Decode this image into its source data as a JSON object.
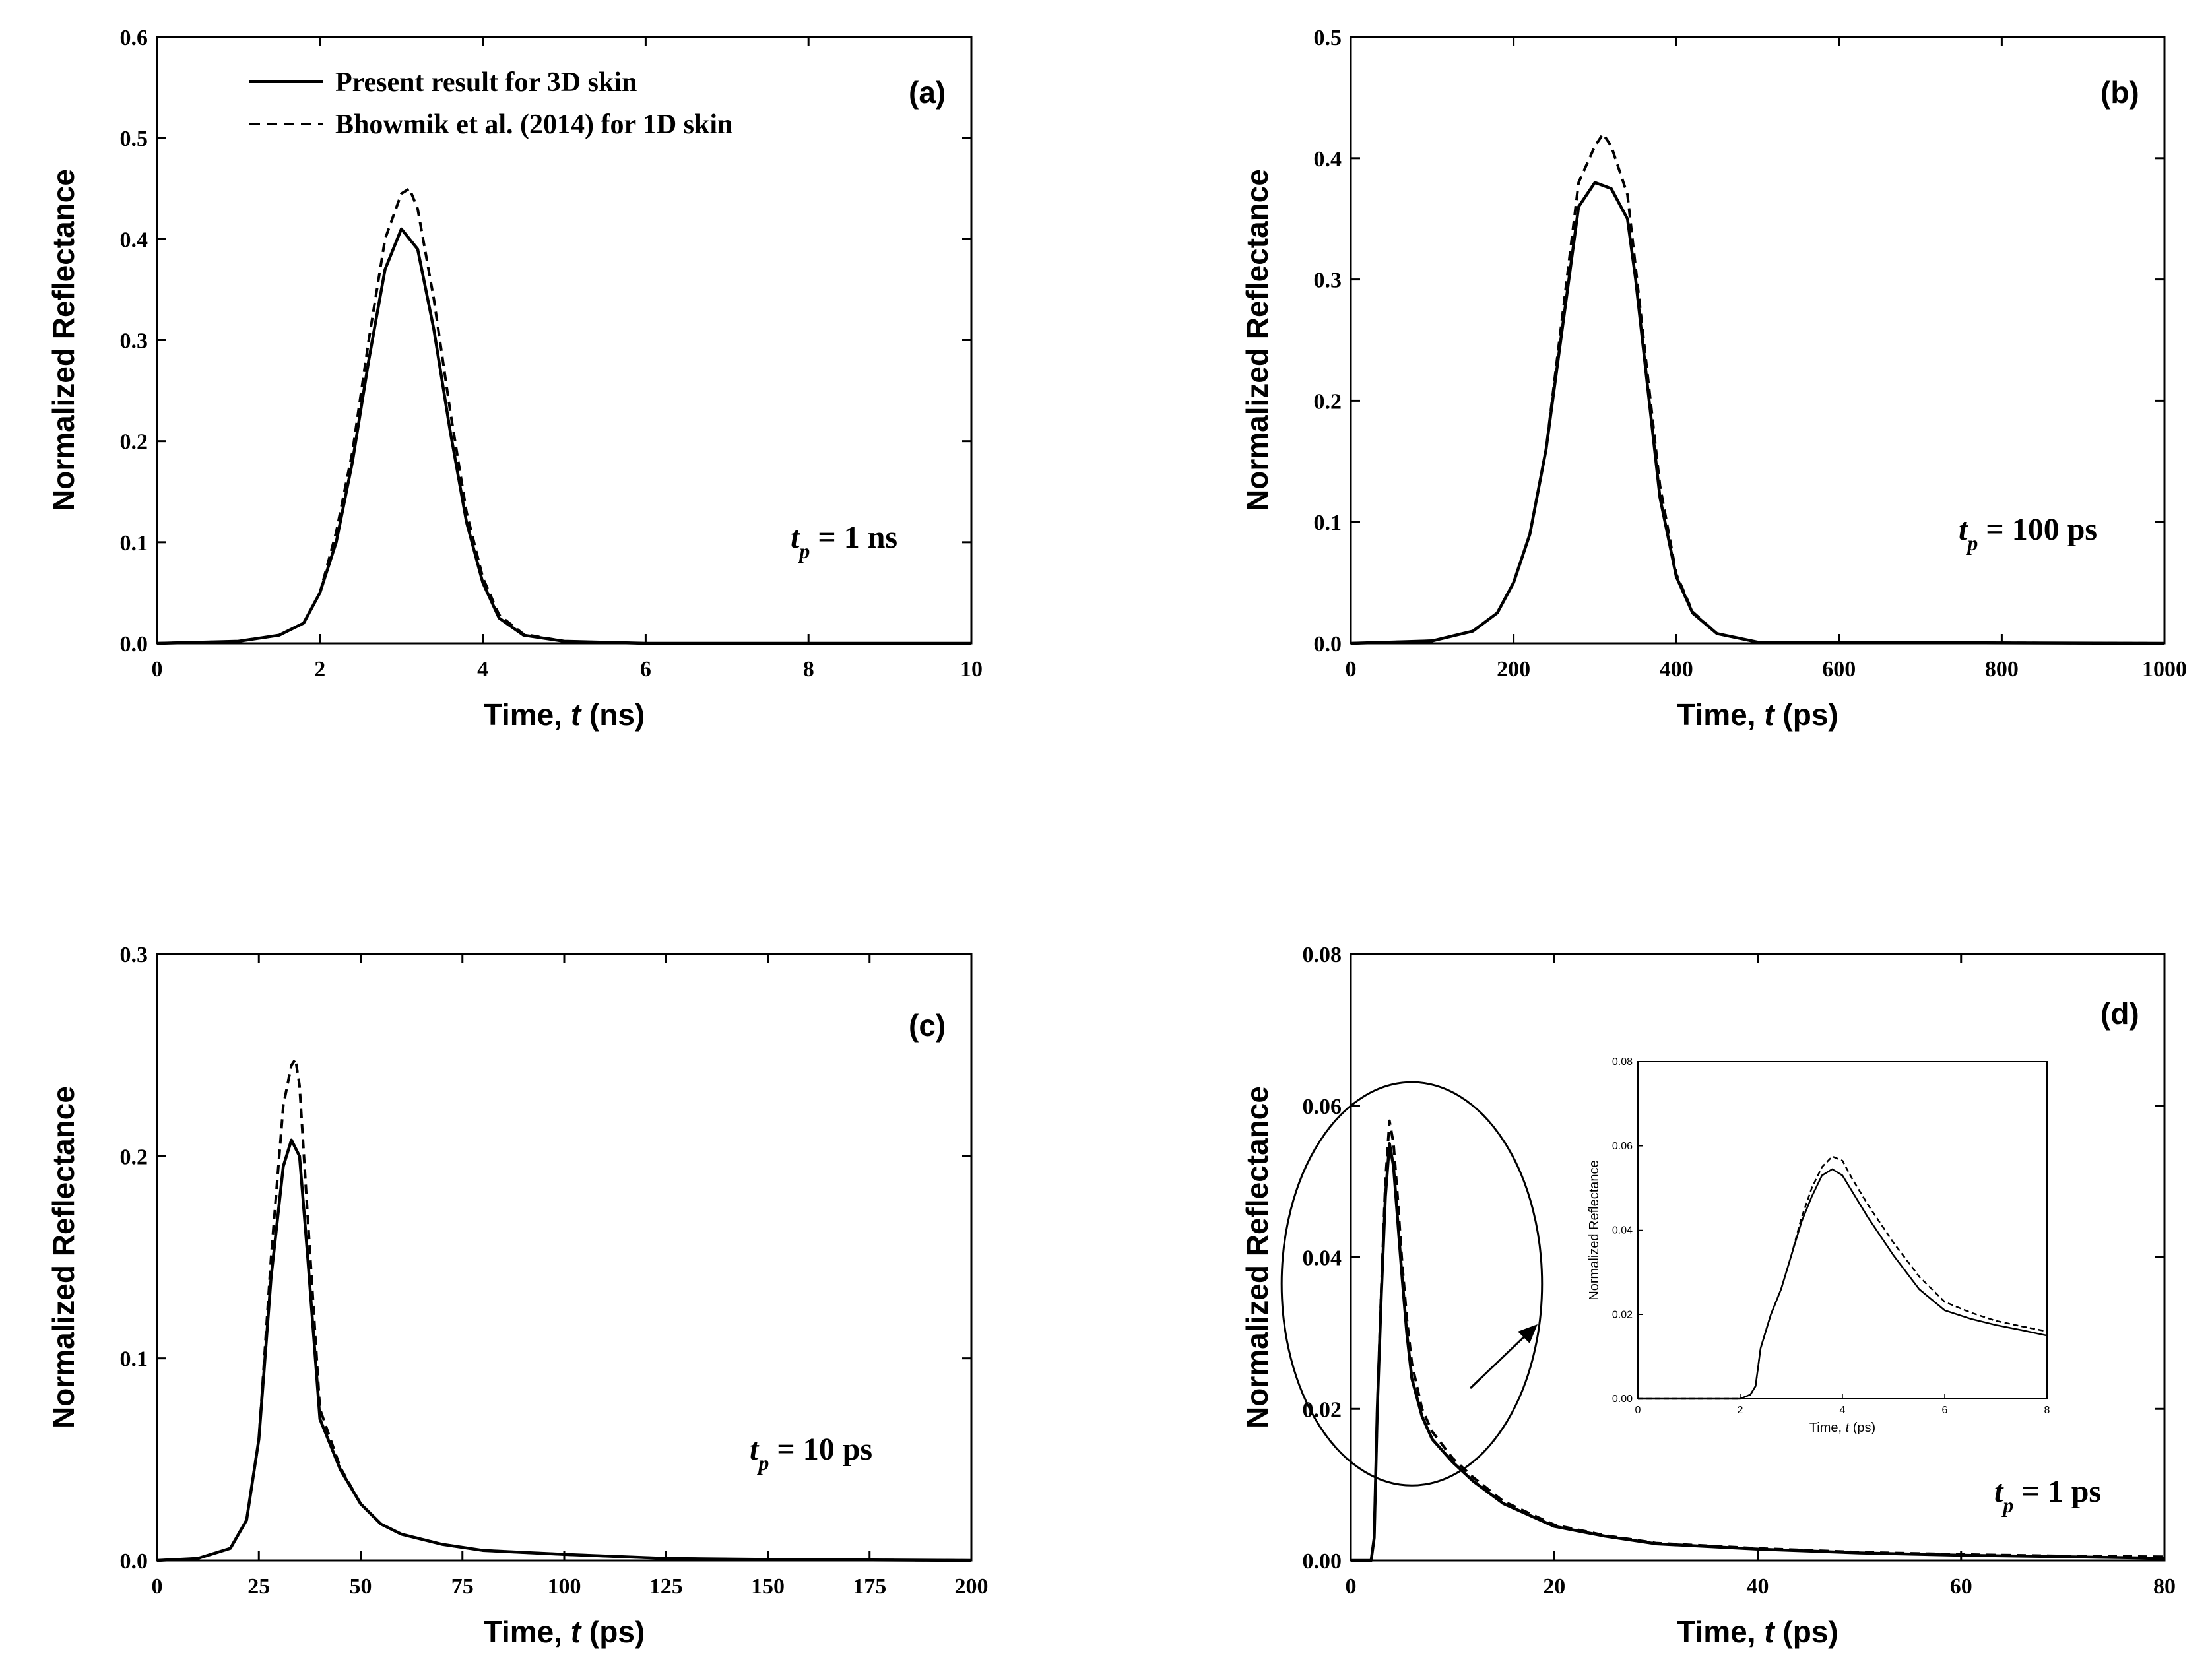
{
  "legend": {
    "solid": "Present result for 3D skin",
    "dashed": "Bhowmik et al. (2014)  for 1D skin"
  },
  "chart_data": [
    {
      "id": "a",
      "type": "line",
      "panel_label": "(a)",
      "xlabel_prefix": "Time, ",
      "xlabel_var": "t",
      "xlabel_unit": " (ns)",
      "ylabel": "Normalized Reflectance",
      "xlim": [
        0,
        10
      ],
      "ylim": [
        0,
        0.6
      ],
      "xticks": [
        0,
        2,
        4,
        6,
        8,
        10
      ],
      "yticks": [
        0.0,
        0.1,
        0.2,
        0.3,
        0.4,
        0.5,
        0.6
      ],
      "ytick_labels": [
        "0.0",
        "0.1",
        "0.2",
        "0.3",
        "0.4",
        "0.5",
        "0.6"
      ],
      "annotation": {
        "t": "t",
        "sub": "p",
        "rest": " = 1 ns"
      },
      "series": [
        {
          "name": "Present result for 3D skin",
          "style": "solid",
          "x": [
            0,
            1.0,
            1.5,
            1.8,
            2.0,
            2.2,
            2.4,
            2.6,
            2.8,
            3.0,
            3.2,
            3.4,
            3.6,
            3.8,
            4.0,
            4.2,
            4.5,
            5.0,
            6.0,
            10.0
          ],
          "y": [
            0,
            0.002,
            0.008,
            0.02,
            0.05,
            0.1,
            0.18,
            0.28,
            0.37,
            0.41,
            0.39,
            0.31,
            0.21,
            0.12,
            0.06,
            0.025,
            0.008,
            0.002,
            0.0,
            0.0
          ]
        },
        {
          "name": "Bhowmik et al. (2014)  for 1D skin",
          "style": "dashed",
          "x": [
            0,
            1.0,
            1.5,
            1.8,
            2.0,
            2.2,
            2.4,
            2.6,
            2.8,
            3.0,
            3.1,
            3.2,
            3.4,
            3.6,
            3.8,
            4.0,
            4.2,
            4.5,
            5.0,
            6.0,
            10.0
          ],
          "y": [
            0,
            0.002,
            0.008,
            0.02,
            0.05,
            0.11,
            0.19,
            0.3,
            0.4,
            0.445,
            0.45,
            0.43,
            0.34,
            0.23,
            0.13,
            0.065,
            0.028,
            0.009,
            0.002,
            0.0,
            0.0
          ]
        }
      ]
    },
    {
      "id": "b",
      "type": "line",
      "panel_label": "(b)",
      "xlabel_prefix": "Time, ",
      "xlabel_var": "t",
      "xlabel_unit": " (ps)",
      "ylabel": "Normalized Reflectance",
      "xlim": [
        0,
        1000
      ],
      "ylim": [
        0,
        0.5
      ],
      "xticks": [
        0,
        200,
        400,
        600,
        800,
        1000
      ],
      "yticks": [
        0.0,
        0.1,
        0.2,
        0.3,
        0.4,
        0.5
      ],
      "ytick_labels": [
        "0.0",
        "0.1",
        "0.2",
        "0.3",
        "0.4",
        "0.5"
      ],
      "annotation": {
        "t": "t",
        "sub": "p",
        "rest": " = 100 ps"
      },
      "series": [
        {
          "name": "Present result for 3D skin",
          "style": "solid",
          "x": [
            0,
            100,
            150,
            180,
            200,
            220,
            240,
            260,
            280,
            300,
            320,
            340,
            350,
            360,
            380,
            400,
            420,
            450,
            500,
            1000
          ],
          "y": [
            0,
            0.002,
            0.01,
            0.025,
            0.05,
            0.09,
            0.16,
            0.26,
            0.36,
            0.38,
            0.375,
            0.35,
            0.3,
            0.24,
            0.12,
            0.055,
            0.025,
            0.008,
            0.001,
            0.0
          ]
        },
        {
          "name": "Bhowmik et al. (2014)  for 1D skin",
          "style": "dashed",
          "x": [
            0,
            100,
            150,
            180,
            200,
            220,
            240,
            260,
            280,
            300,
            310,
            320,
            340,
            350,
            360,
            380,
            400,
            420,
            450,
            500,
            1000
          ],
          "y": [
            0,
            0.002,
            0.01,
            0.025,
            0.05,
            0.09,
            0.16,
            0.27,
            0.38,
            0.41,
            0.42,
            0.41,
            0.37,
            0.31,
            0.25,
            0.13,
            0.057,
            0.026,
            0.008,
            0.001,
            0.0
          ]
        }
      ]
    },
    {
      "id": "c",
      "type": "line",
      "panel_label": "(c)",
      "xlabel_prefix": "Time, ",
      "xlabel_var": "t",
      "xlabel_unit": " (ps)",
      "ylabel": "Normalized Reflectance",
      "xlim": [
        0,
        200
      ],
      "ylim": [
        0,
        0.3
      ],
      "xticks": [
        0,
        25,
        50,
        75,
        100,
        125,
        150,
        175,
        200
      ],
      "yticks": [
        0.0,
        0.1,
        0.2,
        0.3
      ],
      "ytick_labels": [
        "0.0",
        "0.1",
        "0.2",
        "0.3"
      ],
      "annotation": {
        "t": "t",
        "sub": "p",
        "rest": " = 10 ps"
      },
      "series": [
        {
          "name": "Present result for 3D skin",
          "style": "solid",
          "x": [
            0,
            10,
            18,
            22,
            25,
            28,
            31,
            33,
            35,
            37,
            40,
            45,
            50,
            55,
            60,
            70,
            80,
            100,
            125,
            150,
            200
          ],
          "y": [
            0,
            0.001,
            0.006,
            0.02,
            0.06,
            0.14,
            0.195,
            0.208,
            0.2,
            0.15,
            0.07,
            0.045,
            0.028,
            0.018,
            0.013,
            0.008,
            0.005,
            0.003,
            0.001,
            0.0005,
            0.0
          ]
        },
        {
          "name": "Bhowmik et al. (2014)  for 1D skin",
          "style": "dashed",
          "x": [
            0,
            10,
            18,
            22,
            25,
            28,
            31,
            33,
            34,
            35,
            37,
            40,
            45,
            50,
            55,
            60,
            70,
            80,
            100,
            125,
            150,
            200
          ],
          "y": [
            0,
            0.001,
            0.006,
            0.02,
            0.06,
            0.15,
            0.225,
            0.245,
            0.248,
            0.235,
            0.17,
            0.075,
            0.046,
            0.028,
            0.018,
            0.013,
            0.008,
            0.005,
            0.003,
            0.001,
            0.0005,
            0.0
          ]
        }
      ]
    },
    {
      "id": "d",
      "type": "line",
      "panel_label": "(d)",
      "xlabel_prefix": "Time, ",
      "xlabel_var": "t",
      "xlabel_unit": " (ps)",
      "ylabel": "Normalized Reflectance",
      "xlim": [
        0,
        80
      ],
      "ylim": [
        0,
        0.08
      ],
      "xticks": [
        0,
        20,
        40,
        60,
        80
      ],
      "yticks": [
        0.0,
        0.02,
        0.04,
        0.06,
        0.08
      ],
      "ytick_labels": [
        "0.00",
        "0.02",
        "0.04",
        "0.06",
        "0.08"
      ],
      "annotation": {
        "t": "t",
        "sub": "p",
        "rest": " = 1 ps"
      },
      "series": [
        {
          "name": "Present result for 3D skin",
          "style": "solid",
          "x": [
            0,
            2.0,
            2.3,
            2.6,
            3.0,
            3.4,
            3.8,
            4.2,
            4.6,
            5.0,
            5.5,
            6.0,
            7.0,
            8.0,
            10,
            12,
            15,
            20,
            25,
            30,
            40,
            50,
            60,
            70,
            80
          ],
          "y": [
            0,
            0.0,
            0.003,
            0.02,
            0.035,
            0.048,
            0.055,
            0.052,
            0.045,
            0.038,
            0.03,
            0.024,
            0.019,
            0.016,
            0.013,
            0.0105,
            0.0075,
            0.0045,
            0.0032,
            0.0022,
            0.0015,
            0.001,
            0.0007,
            0.0005,
            0.0003
          ]
        },
        {
          "name": "Bhowmik et al. (2014)  for 1D skin",
          "style": "dashed",
          "x": [
            0,
            2.0,
            2.3,
            2.6,
            3.0,
            3.4,
            3.8,
            4.2,
            4.6,
            5.0,
            5.5,
            6.0,
            7.0,
            8.0,
            10,
            12,
            15,
            20,
            25,
            30,
            40,
            50,
            60,
            70,
            80
          ],
          "y": [
            0,
            0.0,
            0.003,
            0.02,
            0.036,
            0.05,
            0.058,
            0.055,
            0.048,
            0.04,
            0.032,
            0.026,
            0.02,
            0.017,
            0.0135,
            0.011,
            0.0078,
            0.0047,
            0.0033,
            0.0023,
            0.0016,
            0.0011,
            0.0008,
            0.0006,
            0.0005
          ]
        }
      ],
      "inset": {
        "xlabel_prefix": "Time, ",
        "xlabel_var": "t",
        "xlabel_unit": " (ps)",
        "ylabel": "Normalized Reflectance",
        "xlim": [
          0,
          8
        ],
        "ylim": [
          0,
          0.08
        ],
        "xticks": [
          0,
          2,
          4,
          6,
          8
        ],
        "yticks": [
          0.0,
          0.02,
          0.04,
          0.06,
          0.08
        ],
        "ytick_labels": [
          "0.00",
          "0.02",
          "0.04",
          "0.06",
          "0.08"
        ],
        "series": [
          {
            "name": "Present result for 3D skin",
            "style": "solid",
            "x": [
              0,
              2.0,
              2.2,
              2.3,
              2.4,
              2.6,
              2.8,
              3.0,
              3.2,
              3.4,
              3.6,
              3.8,
              4.0,
              4.2,
              4.5,
              5.0,
              5.5,
              6.0,
              6.5,
              7.0,
              7.5,
              8.0
            ],
            "y": [
              0,
              0.0,
              0.001,
              0.003,
              0.012,
              0.02,
              0.026,
              0.034,
              0.042,
              0.048,
              0.053,
              0.0545,
              0.053,
              0.049,
              0.043,
              0.034,
              0.026,
              0.021,
              0.019,
              0.0175,
              0.0163,
              0.015
            ]
          },
          {
            "name": "Bhowmik et al. (2014)  for 1D skin",
            "style": "dashed",
            "x": [
              0,
              2.0,
              2.2,
              2.3,
              2.4,
              2.6,
              2.8,
              3.0,
              3.2,
              3.4,
              3.6,
              3.8,
              4.0,
              4.2,
              4.5,
              5.0,
              5.5,
              6.0,
              6.5,
              7.0,
              7.5,
              8.0
            ],
            "y": [
              0,
              0.0,
              0.001,
              0.003,
              0.012,
              0.02,
              0.026,
              0.034,
              0.043,
              0.05,
              0.055,
              0.0575,
              0.0565,
              0.052,
              0.046,
              0.037,
              0.029,
              0.023,
              0.0205,
              0.0185,
              0.0172,
              0.016
            ]
          }
        ]
      }
    }
  ]
}
